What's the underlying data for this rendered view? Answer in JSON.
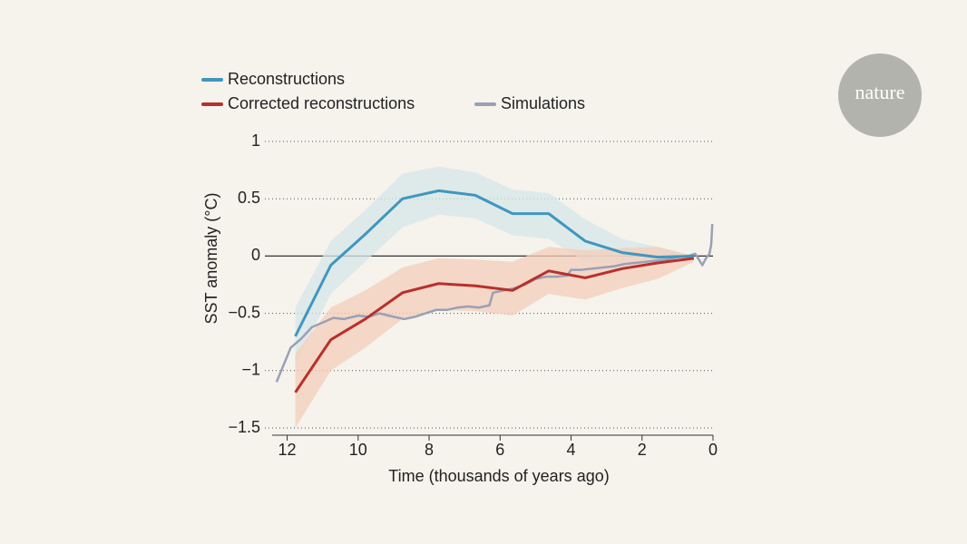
{
  "brand": "nature",
  "chart_data": {
    "type": "line",
    "x_label": "Time (thousands of years ago)",
    "y_label": "SST anomaly (°C)",
    "xlim": [
      12.5,
      0
    ],
    "xticks": [
      12,
      10,
      8,
      6,
      4,
      2,
      0
    ],
    "ylim": [
      -1.5,
      1
    ],
    "yticks": [
      {
        "value": -1.5,
        "label": "−1.5"
      },
      {
        "value": -1,
        "label": "−1"
      },
      {
        "value": -0.5,
        "label": "−0.5"
      },
      0,
      0.5,
      1
    ],
    "grid": true,
    "series": [
      {
        "name": "Reconstructions",
        "color": "#3f97bf",
        "band_color": "#d6e7e8",
        "x": [
          11.77,
          10.77,
          9.8,
          8.75,
          7.73,
          6.7,
          5.65,
          4.63,
          3.6,
          2.56,
          1.56,
          0.54
        ],
        "values": [
          -0.7,
          -0.08,
          0.19,
          0.5,
          0.57,
          0.53,
          0.37,
          0.37,
          0.13,
          0.03,
          -0.01,
          0.0
        ],
        "upper": [
          -0.45,
          0.13,
          0.4,
          0.72,
          0.78,
          0.73,
          0.58,
          0.55,
          0.32,
          0.15,
          0.08,
          0.0
        ],
        "lower": [
          -0.95,
          -0.33,
          -0.05,
          0.25,
          0.36,
          0.33,
          0.18,
          0.15,
          -0.05,
          -0.06,
          -0.08,
          -0.02
        ]
      },
      {
        "name": "Corrected reconstructions",
        "color": "#b8302c",
        "band_color": "#f3cdb9",
        "x": [
          11.77,
          10.77,
          9.8,
          8.75,
          7.73,
          6.7,
          5.65,
          4.63,
          3.6,
          2.56,
          1.56,
          0.54
        ],
        "values": [
          -1.19,
          -0.73,
          -0.55,
          -0.32,
          -0.24,
          -0.26,
          -0.3,
          -0.13,
          -0.19,
          -0.11,
          -0.06,
          -0.02
        ],
        "upper": [
          -0.85,
          -0.45,
          -0.3,
          -0.1,
          -0.02,
          -0.03,
          -0.05,
          0.08,
          0.05,
          0.07,
          0.08,
          0.0
        ],
        "lower": [
          -1.5,
          -1.0,
          -0.8,
          -0.55,
          -0.47,
          -0.48,
          -0.52,
          -0.33,
          -0.38,
          -0.28,
          -0.2,
          -0.05
        ]
      },
      {
        "name": "Simulations",
        "color": "#9aa0b6",
        "x": [
          12.3,
          12.1,
          11.9,
          11.6,
          11.3,
          11.0,
          10.7,
          10.4,
          10.0,
          9.7,
          9.4,
          9.0,
          8.7,
          8.4,
          8.1,
          7.8,
          7.5,
          7.2,
          6.9,
          6.6,
          6.3,
          6.2,
          5.9,
          5.6,
          5.3,
          5.0,
          4.7,
          4.4,
          4.1,
          4.0,
          3.7,
          3.4,
          3.1,
          2.8,
          2.5,
          2.2,
          1.9,
          1.6,
          1.3,
          1.0,
          0.7,
          0.5,
          0.4,
          0.3,
          0.2,
          0.1,
          0.05,
          0.02
        ],
        "values": [
          -1.1,
          -0.95,
          -0.8,
          -0.72,
          -0.62,
          -0.58,
          -0.54,
          -0.55,
          -0.52,
          -0.53,
          -0.5,
          -0.53,
          -0.55,
          -0.53,
          -0.5,
          -0.47,
          -0.47,
          -0.45,
          -0.44,
          -0.45,
          -0.43,
          -0.32,
          -0.3,
          -0.28,
          -0.25,
          -0.2,
          -0.18,
          -0.18,
          -0.17,
          -0.12,
          -0.12,
          -0.11,
          -0.1,
          -0.09,
          -0.07,
          -0.06,
          -0.05,
          -0.04,
          -0.03,
          -0.01,
          0.0,
          0.02,
          -0.03,
          -0.08,
          -0.02,
          0.02,
          0.1,
          0.28
        ]
      }
    ]
  }
}
